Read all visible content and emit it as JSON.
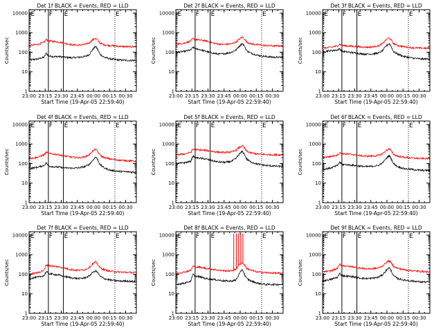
{
  "common": {
    "xlabel": "Start Time (19-Apr-05 22:59:40)",
    "ylabel": "Counts/sec",
    "x_tick_labels": [
      "23:00",
      "23:15",
      "23:30",
      "23:45",
      "00:00",
      "00:15",
      "00:30"
    ],
    "x_tick_minutes": [
      0,
      15,
      30,
      45,
      60,
      75,
      90
    ],
    "xlim_minutes": [
      0,
      100
    ],
    "y_tick_labels": [
      "1",
      "10",
      "100",
      "1000",
      "10000"
    ],
    "y_tick_values": [
      1,
      10,
      100,
      1000,
      10000
    ],
    "ylim": [
      1,
      15000
    ],
    "y_scale": "log",
    "markers": [
      {
        "label": "E",
        "minute": 1,
        "style": "dotted"
      },
      {
        "label": "F",
        "minute": 18,
        "style": "solid"
      },
      {
        "label": "E",
        "minute": 32,
        "style": "solid"
      },
      {
        "label": "E",
        "minute": 80,
        "style": "dotted"
      }
    ],
    "colors": {
      "events": "#000000",
      "lld": "#ff0000"
    }
  },
  "chart_data": [
    {
      "type": "line",
      "title": "Det 1f BLACK = Events, RED = LLD",
      "y_scale": "log",
      "series": [
        {
          "color": "#000000",
          "x": [
            0,
            8,
            14,
            16,
            18,
            22,
            28,
            34,
            40,
            46,
            52,
            56,
            59,
            62,
            64,
            66,
            70,
            76,
            84,
            92,
            100
          ],
          "y": [
            40,
            45,
            55,
            90,
            65,
            60,
            60,
            55,
            52,
            55,
            60,
            75,
            130,
            200,
            140,
            80,
            55,
            45,
            40,
            38,
            38
          ]
        },
        {
          "color": "#ff0000",
          "x": [
            0,
            8,
            14,
            16,
            18,
            22,
            28,
            34,
            40,
            46,
            52,
            56,
            59,
            62,
            64,
            66,
            70,
            76,
            84,
            92,
            100
          ],
          "y": [
            220,
            250,
            320,
            450,
            380,
            360,
            330,
            280,
            240,
            230,
            250,
            300,
            420,
            520,
            420,
            300,
            240,
            220,
            200,
            190,
            190
          ]
        }
      ]
    },
    {
      "type": "line",
      "title": "Det 2f BLACK = Events, RED = LLD",
      "y_scale": "log",
      "series": [
        {
          "color": "#000000",
          "x": [
            0,
            8,
            14,
            16,
            18,
            22,
            28,
            34,
            40,
            46,
            52,
            56,
            59,
            62,
            64,
            66,
            70,
            76,
            84,
            92,
            100
          ],
          "y": [
            100,
            110,
            130,
            180,
            150,
            140,
            110,
            90,
            80,
            85,
            100,
            130,
            200,
            280,
            210,
            120,
            90,
            70,
            60,
            55,
            55
          ]
        },
        {
          "color": "#ff0000",
          "x": [
            0,
            8,
            14,
            16,
            18,
            22,
            28,
            34,
            40,
            46,
            52,
            56,
            59,
            62,
            64,
            66,
            70,
            76,
            84,
            92,
            100
          ],
          "y": [
            260,
            290,
            380,
            500,
            450,
            420,
            380,
            300,
            260,
            250,
            270,
            330,
            450,
            600,
            480,
            330,
            270,
            240,
            220,
            210,
            210
          ]
        }
      ]
    },
    {
      "type": "line",
      "title": "Det 3f BLACK = Events, RED = LLD",
      "y_scale": "log",
      "series": [
        {
          "color": "#000000",
          "x": [
            0,
            8,
            14,
            16,
            18,
            22,
            28,
            34,
            40,
            46,
            52,
            56,
            59,
            62,
            64,
            66,
            70,
            76,
            84,
            92,
            100
          ],
          "y": [
            110,
            120,
            130,
            150,
            110,
            105,
            95,
            85,
            80,
            82,
            90,
            120,
            200,
            280,
            200,
            110,
            80,
            60,
            50,
            45,
            45
          ]
        },
        {
          "color": "#ff0000",
          "x": [
            0,
            8,
            14,
            16,
            18,
            22,
            28,
            34,
            40,
            46,
            52,
            56,
            59,
            62,
            64,
            66,
            70,
            76,
            84,
            92,
            100
          ],
          "y": [
            160,
            180,
            210,
            260,
            220,
            210,
            200,
            190,
            180,
            185,
            210,
            280,
            420,
            550,
            420,
            280,
            220,
            190,
            170,
            160,
            160
          ]
        }
      ]
    },
    {
      "type": "line",
      "title": "Det 4f BLACK = Events, RED = LLD",
      "y_scale": "log",
      "series": [
        {
          "color": "#000000",
          "x": [
            0,
            8,
            14,
            16,
            18,
            22,
            28,
            34,
            40,
            46,
            52,
            56,
            59,
            62,
            64,
            66,
            70,
            76,
            84,
            92,
            100
          ],
          "y": [
            55,
            65,
            80,
            110,
            75,
            70,
            65,
            60,
            58,
            60,
            70,
            90,
            140,
            220,
            160,
            90,
            60,
            45,
            40,
            38,
            35
          ]
        },
        {
          "color": "#ff0000",
          "x": [
            0,
            8,
            14,
            16,
            18,
            22,
            28,
            34,
            40,
            46,
            52,
            56,
            59,
            62,
            64,
            66,
            70,
            76,
            84,
            92,
            100
          ],
          "y": [
            180,
            210,
            280,
            380,
            330,
            310,
            280,
            240,
            210,
            200,
            220,
            280,
            420,
            550,
            420,
            270,
            200,
            170,
            150,
            140,
            130
          ]
        }
      ]
    },
    {
      "type": "line",
      "title": "Det 5f BLACK = Events, RED = LLD",
      "y_scale": "log",
      "series": [
        {
          "color": "#000000",
          "x": [
            0,
            8,
            14,
            16,
            18,
            22,
            28,
            34,
            40,
            46,
            52,
            56,
            59,
            62,
            64,
            66,
            70,
            76,
            84,
            92,
            100
          ],
          "y": [
            100,
            110,
            130,
            250,
            200,
            190,
            170,
            140,
            120,
            115,
            130,
            180,
            300,
            420,
            300,
            170,
            120,
            95,
            80,
            75,
            70
          ]
        },
        {
          "color": "#ff0000",
          "x": [
            0,
            8,
            14,
            16,
            18,
            22,
            28,
            34,
            40,
            46,
            52,
            56,
            59,
            62,
            64,
            66,
            70,
            76,
            84,
            92,
            100
          ],
          "y": [
            280,
            310,
            380,
            560,
            520,
            500,
            470,
            420,
            380,
            370,
            400,
            480,
            650,
            800,
            620,
            430,
            350,
            310,
            290,
            280,
            280
          ]
        }
      ]
    },
    {
      "type": "line",
      "title": "Det 6f BLACK = Events, RED = LLD",
      "y_scale": "log",
      "series": [
        {
          "color": "#000000",
          "x": [
            0,
            8,
            14,
            16,
            18,
            22,
            28,
            34,
            40,
            46,
            52,
            56,
            59,
            62,
            64,
            66,
            70,
            76,
            84,
            92,
            100
          ],
          "y": [
            50,
            60,
            80,
            120,
            90,
            88,
            82,
            75,
            70,
            72,
            80,
            110,
            170,
            260,
            180,
            100,
            70,
            55,
            50,
            45,
            45
          ]
        },
        {
          "color": "#ff0000",
          "x": [
            0,
            8,
            14,
            16,
            18,
            22,
            28,
            34,
            40,
            46,
            52,
            56,
            59,
            62,
            64,
            66,
            70,
            76,
            84,
            92,
            100
          ],
          "y": [
            210,
            230,
            280,
            360,
            320,
            310,
            290,
            260,
            240,
            240,
            260,
            320,
            450,
            580,
            450,
            300,
            240,
            210,
            190,
            180,
            180
          ]
        }
      ]
    },
    {
      "type": "line",
      "title": "Det 7f BLACK = Events, RED = LLD",
      "y_scale": "log",
      "series": [
        {
          "color": "#000000",
          "x": [
            0,
            8,
            14,
            16,
            18,
            22,
            28,
            34,
            40,
            46,
            52,
            56,
            59,
            62,
            64,
            66,
            70,
            76,
            84,
            92,
            100
          ],
          "y": [
            60,
            70,
            85,
            140,
            110,
            100,
            90,
            75,
            65,
            60,
            65,
            80,
            120,
            150,
            120,
            80,
            60,
            50,
            45,
            45,
            40
          ]
        },
        {
          "color": "#ff0000",
          "x": [
            0,
            8,
            14,
            16,
            18,
            22,
            28,
            34,
            40,
            46,
            52,
            56,
            59,
            62,
            64,
            66,
            70,
            76,
            84,
            92,
            100
          ],
          "y": [
            100,
            120,
            160,
            300,
            280,
            260,
            240,
            200,
            170,
            160,
            170,
            220,
            330,
            420,
            330,
            220,
            170,
            140,
            130,
            125,
            120
          ]
        }
      ]
    },
    {
      "type": "line",
      "title": "Det 8f BLACK = Events, RED = LLD",
      "y_scale": "log",
      "series": [
        {
          "color": "#000000",
          "x": [
            0,
            8,
            14,
            16,
            18,
            22,
            28,
            34,
            40,
            46,
            52,
            56,
            59,
            62,
            64,
            66,
            70,
            76,
            84,
            92,
            100
          ],
          "y": [
            30,
            35,
            45,
            100,
            80,
            75,
            60,
            55,
            50,
            45,
            45,
            50,
            100,
            180,
            100,
            60,
            45,
            35,
            30,
            30,
            30
          ]
        },
        {
          "color": "#ff0000",
          "x": [
            0,
            8,
            14,
            16,
            18,
            22,
            28,
            34,
            40,
            46,
            52,
            56,
            59,
            62,
            64,
            66,
            70,
            76,
            84,
            92,
            100
          ],
          "y": [
            110,
            130,
            160,
            260,
            240,
            230,
            200,
            180,
            160,
            150,
            150,
            180,
            300,
            400,
            300,
            200,
            160,
            130,
            120,
            115,
            110
          ]
        }
      ],
      "spikes": [
        {
          "color": "#ff0000",
          "x": [
            54,
            56.5,
            58.5,
            60.5,
            62.5
          ],
          "y": [
            12000,
            12000,
            12000,
            12000,
            12000
          ]
        }
      ]
    },
    {
      "type": "line",
      "title": "Det 9f BLACK = Events, RED = LLD",
      "y_scale": "log",
      "series": [
        {
          "color": "#000000",
          "x": [
            0,
            8,
            14,
            16,
            18,
            22,
            28,
            34,
            40,
            46,
            52,
            56,
            59,
            62,
            64,
            66,
            70,
            76,
            84,
            92,
            100
          ],
          "y": [
            45,
            55,
            70,
            110,
            85,
            80,
            75,
            65,
            60,
            62,
            70,
            95,
            150,
            220,
            150,
            85,
            60,
            50,
            45,
            40,
            40
          ]
        },
        {
          "color": "#ff0000",
          "x": [
            0,
            8,
            14,
            16,
            18,
            22,
            28,
            34,
            40,
            46,
            52,
            56,
            59,
            62,
            64,
            66,
            70,
            76,
            84,
            92,
            100
          ],
          "y": [
            130,
            150,
            200,
            330,
            280,
            260,
            240,
            210,
            190,
            190,
            210,
            270,
            380,
            500,
            380,
            260,
            200,
            170,
            150,
            140,
            130
          ]
        }
      ]
    }
  ]
}
